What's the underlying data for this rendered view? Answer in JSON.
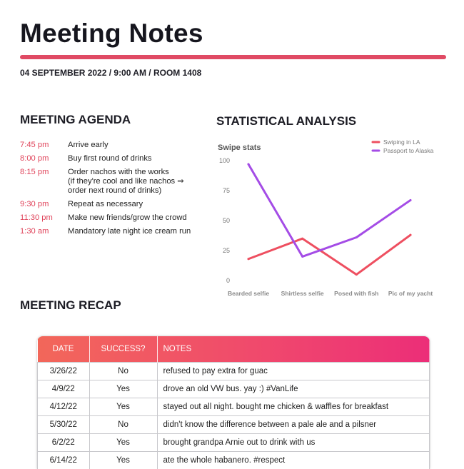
{
  "header": {
    "title": "Meeting Notes",
    "meta": "04 SEPTEMBER 2022 / 9:00 AM / ROOM 1408"
  },
  "agenda": {
    "title": "MEETING AGENDA",
    "items": [
      {
        "time": "7:45 pm",
        "text": "Arrive early"
      },
      {
        "time": "8:00 pm",
        "text": "Buy first round of drinks"
      },
      {
        "time": "8:15 pm",
        "text": "Order nachos with the works\n(if they're cool and like nachos ⇒\n  order next round of drinks)"
      },
      {
        "time": "9:30 pm",
        "text": "Repeat as necessary"
      },
      {
        "time": "11:30 pm",
        "text": "Make new friends/grow the crowd"
      },
      {
        "time": "1:30 am",
        "text": "Mandatory late night ice cream run"
      }
    ]
  },
  "stats": {
    "title": "STATISTICAL ANALYSIS"
  },
  "chart_data": {
    "type": "line",
    "title": "Swipe stats",
    "categories": [
      "Bearded selfie",
      "Shirtless selfie",
      "Posed with fish",
      "Pic of my yacht"
    ],
    "series": [
      {
        "name": "Swiping in LA",
        "color": "#ee4f60",
        "values": [
          18,
          35,
          5,
          38
        ]
      },
      {
        "name": "Passport to Alaska",
        "color": "#a44ce6",
        "values": [
          97,
          20,
          36,
          67
        ]
      }
    ],
    "yticks": [
      0,
      25,
      50,
      75,
      100
    ],
    "ylim": [
      0,
      100
    ],
    "legend": "top-right",
    "grid": false
  },
  "recap": {
    "title": "MEETING RECAP",
    "columns": [
      "DATE",
      "SUCCESS?",
      "NOTES"
    ],
    "rows": [
      {
        "date": "3/26/22",
        "success": "No",
        "notes": "refused to pay extra for guac"
      },
      {
        "date": "4/9/22",
        "success": "Yes",
        "notes": "drove an old VW bus. yay :) #VanLife"
      },
      {
        "date": "4/12/22",
        "success": "Yes",
        "notes": "stayed out all night. bought me chicken & waffles for breakfast"
      },
      {
        "date": "5/30/22",
        "success": "No",
        "notes": "didn't know the difference between a pale ale and a pilsner"
      },
      {
        "date": "6/2/22",
        "success": "Yes",
        "notes": "brought grandpa Arnie out to drink with us"
      },
      {
        "date": "6/14/22",
        "success": "Yes",
        "notes": "ate the whole habanero. #respect"
      }
    ]
  }
}
